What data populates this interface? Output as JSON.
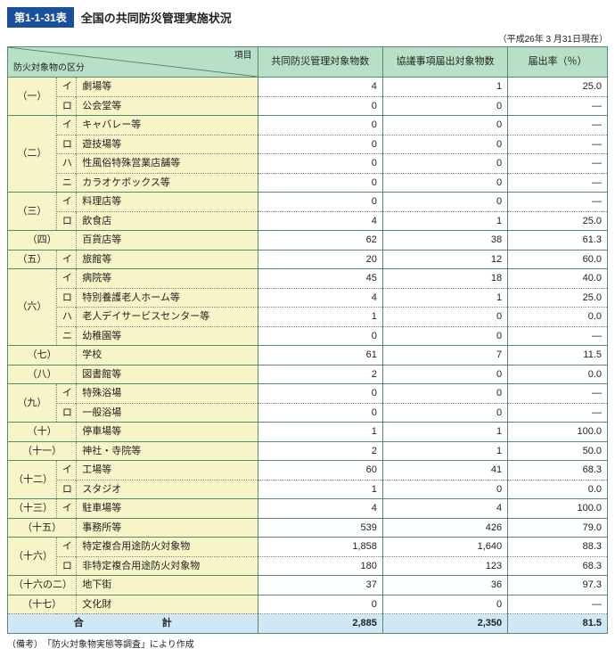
{
  "title_badge": "第1-1-31表",
  "title_text": "全国の共同防災管理実施状況",
  "as_of": "（平成26年 3 月31日現在）",
  "header": {
    "diag_top": "項目",
    "diag_bottom": "防火対象物の区分",
    "col1": "共同防災管理対象物数",
    "col2": "協議事項届出対象物数",
    "col3": "届出率（％）"
  },
  "groups": [
    {
      "cat": "（一）",
      "rows": [
        {
          "sub": "イ",
          "name": "劇場等",
          "v": [
            "4",
            "1",
            "25.0"
          ]
        },
        {
          "sub": "ロ",
          "name": "公会堂等",
          "v": [
            "0",
            "0",
            "—"
          ]
        }
      ]
    },
    {
      "cat": "（二）",
      "rows": [
        {
          "sub": "イ",
          "name": "キャバレー等",
          "v": [
            "0",
            "0",
            "—"
          ]
        },
        {
          "sub": "ロ",
          "name": "遊技場等",
          "v": [
            "0",
            "0",
            "—"
          ]
        },
        {
          "sub": "ハ",
          "name": "性風俗特殊営業店舗等",
          "v": [
            "0",
            "0",
            "—"
          ]
        },
        {
          "sub": "ニ",
          "name": "カラオケボックス等",
          "v": [
            "0",
            "0",
            "—"
          ]
        }
      ]
    },
    {
      "cat": "（三）",
      "rows": [
        {
          "sub": "イ",
          "name": "料理店等",
          "v": [
            "0",
            "0",
            "—"
          ]
        },
        {
          "sub": "ロ",
          "name": "飲食店",
          "v": [
            "4",
            "1",
            "25.0"
          ]
        }
      ]
    },
    {
      "cat": "（四）",
      "rows": [
        {
          "sub": "",
          "name": "百貨店等",
          "v": [
            "62",
            "38",
            "61.3"
          ]
        }
      ]
    },
    {
      "cat": "（五）",
      "rows": [
        {
          "sub": "イ",
          "name": "旅館等",
          "v": [
            "20",
            "12",
            "60.0"
          ]
        }
      ]
    },
    {
      "cat": "（六）",
      "rows": [
        {
          "sub": "イ",
          "name": "病院等",
          "v": [
            "45",
            "18",
            "40.0"
          ]
        },
        {
          "sub": "ロ",
          "name": "特別養護老人ホーム等",
          "v": [
            "4",
            "1",
            "25.0"
          ]
        },
        {
          "sub": "ハ",
          "name": "老人デイサービスセンター等",
          "v": [
            "1",
            "0",
            "0.0"
          ]
        },
        {
          "sub": "ニ",
          "name": "幼稚園等",
          "v": [
            "0",
            "0",
            "—"
          ]
        }
      ]
    },
    {
      "cat": "（七）",
      "rows": [
        {
          "sub": "",
          "name": "学校",
          "v": [
            "61",
            "7",
            "11.5"
          ]
        }
      ]
    },
    {
      "cat": "（八）",
      "rows": [
        {
          "sub": "",
          "name": "図書館等",
          "v": [
            "2",
            "0",
            "0.0"
          ]
        }
      ]
    },
    {
      "cat": "（九）",
      "rows": [
        {
          "sub": "イ",
          "name": "特殊浴場",
          "v": [
            "0",
            "0",
            "—"
          ]
        },
        {
          "sub": "ロ",
          "name": "一般浴場",
          "v": [
            "0",
            "0",
            "—"
          ]
        }
      ]
    },
    {
      "cat": "（十）",
      "rows": [
        {
          "sub": "",
          "name": "停車場等",
          "v": [
            "1",
            "1",
            "100.0"
          ]
        }
      ]
    },
    {
      "cat": "（十一）",
      "rows": [
        {
          "sub": "",
          "name": "神社・寺院等",
          "v": [
            "2",
            "1",
            "50.0"
          ]
        }
      ]
    },
    {
      "cat": "（十二）",
      "rows": [
        {
          "sub": "イ",
          "name": "工場等",
          "v": [
            "60",
            "41",
            "68.3"
          ]
        },
        {
          "sub": "ロ",
          "name": "スタジオ",
          "v": [
            "1",
            "0",
            "0.0"
          ]
        }
      ]
    },
    {
      "cat": "（十三）",
      "rows": [
        {
          "sub": "イ",
          "name": "駐車場等",
          "v": [
            "4",
            "4",
            "100.0"
          ]
        }
      ]
    },
    {
      "cat": "（十五）",
      "rows": [
        {
          "sub": "",
          "name": "事務所等",
          "v": [
            "539",
            "426",
            "79.0"
          ]
        }
      ]
    },
    {
      "cat": "（十六）",
      "rows": [
        {
          "sub": "イ",
          "name": "特定複合用途防火対象物",
          "v": [
            "1,858",
            "1,640",
            "88.3"
          ]
        },
        {
          "sub": "ロ",
          "name": "非特定複合用途防火対象物",
          "v": [
            "180",
            "123",
            "68.3"
          ]
        }
      ]
    },
    {
      "cat": "（十六の二）",
      "rows": [
        {
          "sub": "",
          "name": "地下街",
          "v": [
            "37",
            "36",
            "97.3"
          ]
        }
      ]
    },
    {
      "cat": "（十七）",
      "rows": [
        {
          "sub": "",
          "name": "文化財",
          "v": [
            "0",
            "0",
            "—"
          ]
        }
      ]
    }
  ],
  "total": {
    "label": "合　　計",
    "v": [
      "2,885",
      "2,350",
      "81.5"
    ]
  },
  "note": "（備考）　「防火対象物実態等調査」により作成"
}
